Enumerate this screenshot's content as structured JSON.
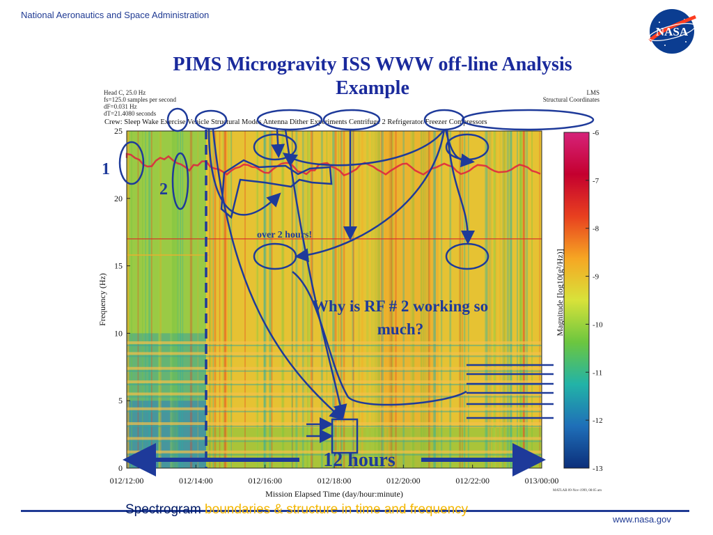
{
  "header": {
    "agency": "National Aeronautics and Space Administration",
    "logo_text": "NASA",
    "title_line1": "PIMS Microgravity ISS WWW off-line Analysis",
    "title_line2": "Example"
  },
  "chart_data": {
    "type": "heatmap",
    "info_left": [
      "Head C, 25.0 Hz",
      "fs=125.0 samples per second",
      "dF=0.031 Hz",
      "dT=21.4080 seconds"
    ],
    "info_right": [
      "LMS",
      "Structural Coordinates"
    ],
    "crew_line": "Crew: Sleep Wake Exercise Vehicle Structural Modes Antenna Dither Experiments Centrifuge 2 Refrigerator/Freezer Compressors",
    "xlabel": "Mission Elapsed Time (day/hour:minute)",
    "ylabel": "Frequency (Hz)",
    "x_ticks": [
      "012/12:00",
      "012/14:00",
      "012/16:00",
      "012/18:00",
      "012/20:00",
      "012/22:00",
      "013/00:00"
    ],
    "y_ticks": [
      0,
      5,
      10,
      15,
      20,
      25
    ],
    "ylim": [
      0,
      25
    ],
    "colorbar_label": "Magnitude [log10(g²/Hz)]",
    "colorbar_ticks": [
      -6,
      -7,
      -8,
      -9,
      -10,
      -11,
      -12,
      -13
    ],
    "colorbar_range": [
      -13,
      -6
    ],
    "colormap": [
      "#0b2e7a",
      "#1f6fb8",
      "#22b3a7",
      "#6cc63f",
      "#d8e23a",
      "#f6a623",
      "#e8401f",
      "#c4002f",
      "#d6237a"
    ],
    "matlab_stamp": "MATLAB 09-Nov-1999, 08:05 am",
    "annotations": {
      "label_1": "1",
      "label_2": "2",
      "over_2_hours": "over 2 hours!",
      "question": "Why is RF # 2 working so much?",
      "twelve_hours": "12 hours"
    }
  },
  "footer": {
    "lead": "Spectrogram",
    "rest": " boundaries & structure in time and frequency",
    "url": "www.nasa.gov"
  },
  "colors": {
    "annotation": "#1e3a9a",
    "title": "#1a2a9c",
    "footer_accent": "#f3b600"
  }
}
